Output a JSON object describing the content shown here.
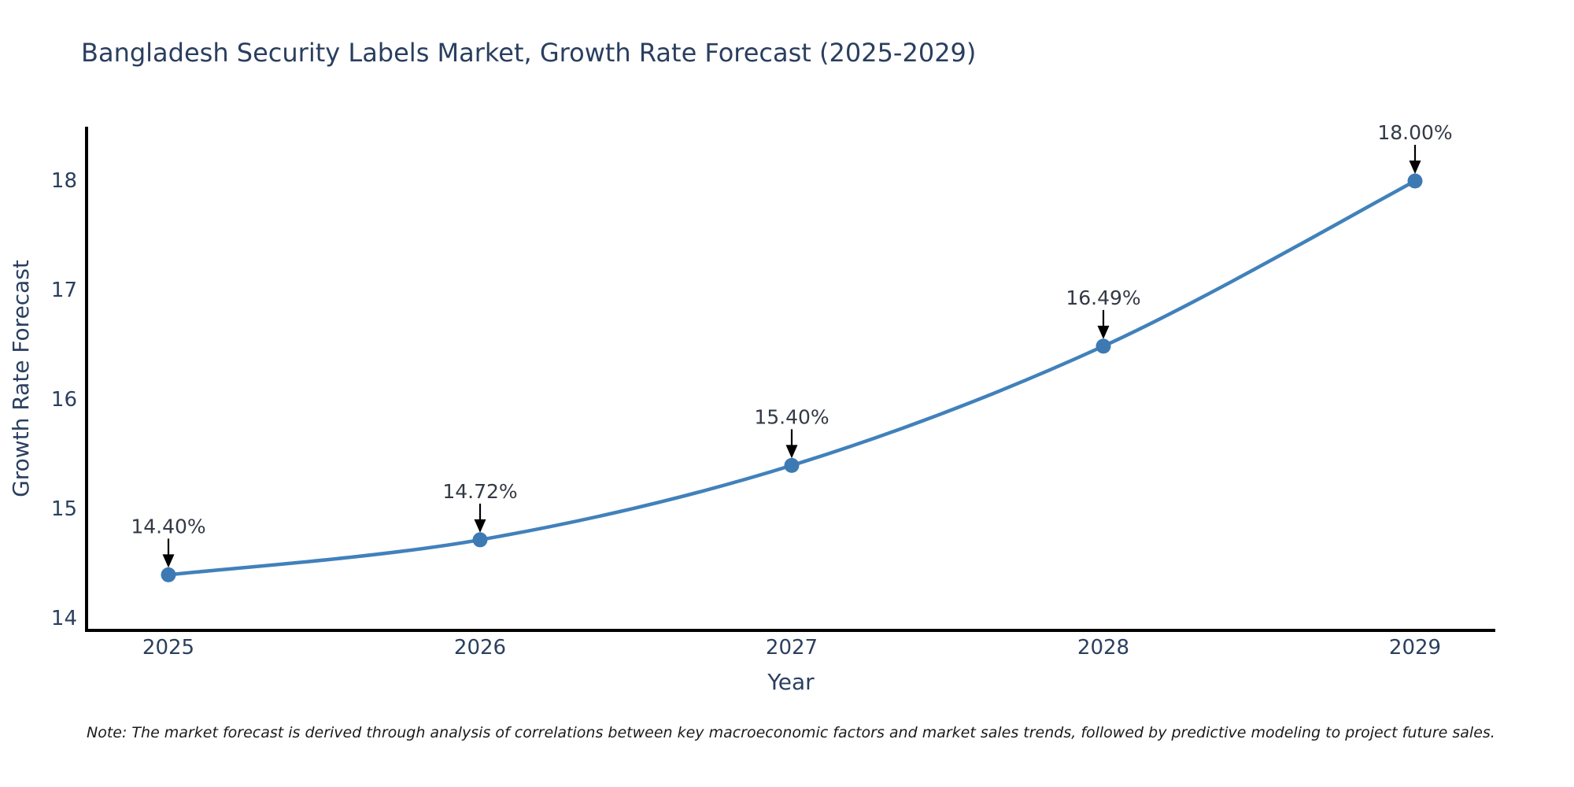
{
  "page": {
    "background": "#ffffff",
    "note": "Note: The market forecast is derived through analysis of correlations between key macroeconomic factors and market sales trends, followed by predictive modeling to project future sales."
  },
  "chart_data": {
    "type": "line",
    "title": "Bangladesh Security Labels Market, Growth Rate Forecast (2025-2029)",
    "xlabel": "Year",
    "ylabel": "Growth Rate Forecast",
    "categories": [
      "2025",
      "2026",
      "2027",
      "2028",
      "2029"
    ],
    "values": [
      14.4,
      14.72,
      15.4,
      16.49,
      18.0
    ],
    "point_labels": [
      "14.40%",
      "14.72%",
      "15.40%",
      "16.49%",
      "18.00%"
    ],
    "yticks": [
      14,
      15,
      16,
      17,
      18
    ],
    "ylim": [
      13.89,
      18.5
    ],
    "grid": false,
    "legend": "none",
    "line_shape": "spline",
    "line_color": "#4181bb",
    "marker_color": "#3d7ab4",
    "axis_color": "#000000",
    "text_color": "#2a3f5f",
    "annotation_color": "#333a45",
    "arrow_color": "#000000"
  }
}
